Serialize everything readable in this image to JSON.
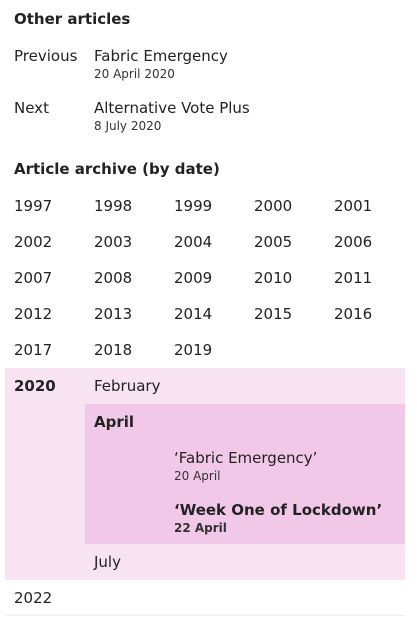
{
  "other_articles": {
    "heading": "Other articles",
    "previous": {
      "label": "Previous",
      "title": "Fabric Emergency",
      "date": "20 April 2020"
    },
    "next": {
      "label": "Next",
      "title": "Alternative Vote Plus",
      "date": "8 July 2020"
    }
  },
  "archive": {
    "heading": "Article archive (by date)",
    "years": [
      "1997",
      "1998",
      "1999",
      "2000",
      "2001",
      "2002",
      "2003",
      "2004",
      "2005",
      "2006",
      "2007",
      "2008",
      "2009",
      "2010",
      "2011",
      "2012",
      "2013",
      "2014",
      "2015",
      "2016",
      "2017",
      "2018",
      "2019"
    ],
    "current_year": "2020",
    "months": [
      "February",
      "April",
      "July"
    ],
    "articles": [
      {
        "title": "‘Fabric Emergency’",
        "date": "20 April"
      },
      {
        "title": "‘Week One of Lockdown’",
        "date": "22 April"
      }
    ],
    "next_year": "2022"
  },
  "colors": {
    "year_band": "#f8e3f3",
    "month_band": "#f2c8e8"
  }
}
